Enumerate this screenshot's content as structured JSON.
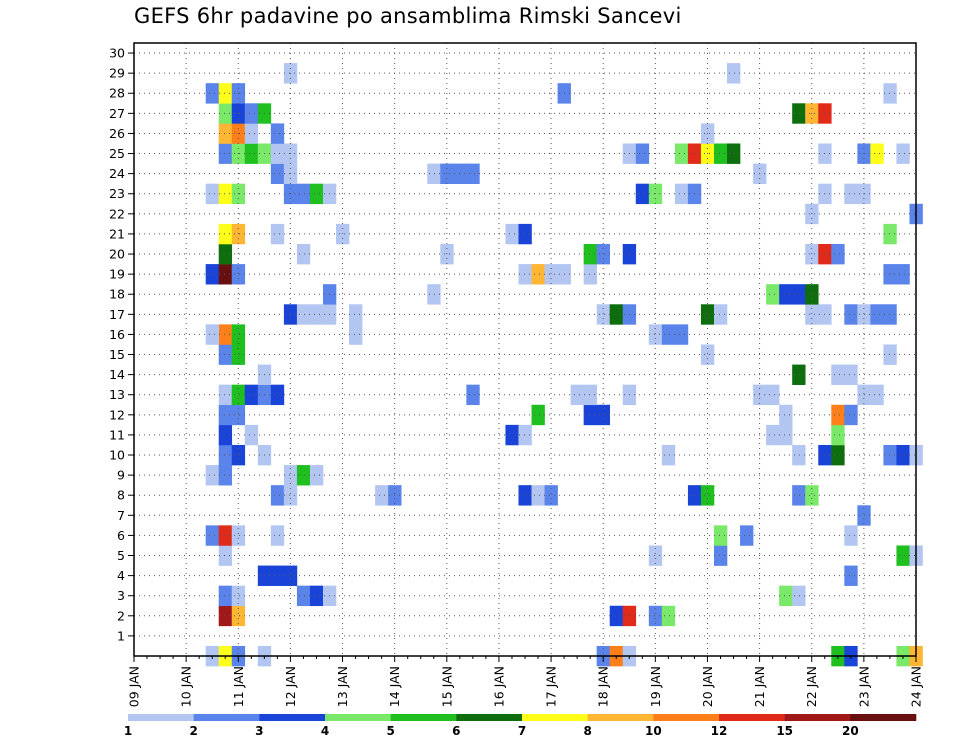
{
  "title": "GEFS 6hr padavine po ansamblima Rimski Sancevi",
  "chart_data": {
    "type": "heatmap",
    "title": "GEFS 6hr padavine po ansamblima Rimski Sancevi",
    "xlabel": "",
    "ylabel": "",
    "x_ticks": [
      "09 JAN",
      "10 JAN",
      "11 JAN",
      "12 JAN",
      "13 JAN",
      "14 JAN",
      "15 JAN",
      "16 JAN",
      "17 JAN",
      "18 JAN",
      "19 JAN",
      "20 JAN",
      "21 JAN",
      "22 JAN",
      "23 JAN",
      "24 JAN"
    ],
    "y_ticks": [
      "1",
      "2",
      "3",
      "4",
      "5",
      "6",
      "7",
      "8",
      "9",
      "10",
      "11",
      "12",
      "13",
      "14",
      "15",
      "16",
      "17",
      "18",
      "19",
      "20",
      "21",
      "22",
      "23",
      "24",
      "25",
      "26",
      "27",
      "28",
      "29",
      "30"
    ],
    "x_unit": "6-hour step (4 per day, 0 = 09 JAN 00z)",
    "xlim": [
      0,
      60
    ],
    "ylim": [
      0,
      30
    ],
    "grid": true,
    "colorbar": {
      "labels": [
        "1",
        "2",
        "3",
        "4",
        "5",
        "6",
        "7",
        "8",
        "10",
        "12",
        "15",
        "20"
      ],
      "colors": [
        "#b3c6f2",
        "#5a84ea",
        "#1a44d8",
        "#7ae868",
        "#1fbf1f",
        "#0e6e0e",
        "#ffff1a",
        "#ffb733",
        "#ff7f1a",
        "#e02a1a",
        "#a01818",
        "#6a0f0f"
      ]
    },
    "cells": [
      {
        "x": 6,
        "y": 0,
        "c": 0
      },
      {
        "x": 7,
        "y": 0,
        "c": 6
      },
      {
        "x": 8,
        "y": 0,
        "c": 1
      },
      {
        "x": 10,
        "y": 0,
        "c": 0
      },
      {
        "x": 36,
        "y": 0,
        "c": 1
      },
      {
        "x": 37,
        "y": 0,
        "c": 8
      },
      {
        "x": 38,
        "y": 0,
        "c": 0
      },
      {
        "x": 54,
        "y": 0,
        "c": 4
      },
      {
        "x": 55,
        "y": 0,
        "c": 2
      },
      {
        "x": 59,
        "y": 0,
        "c": 3
      },
      {
        "x": 60,
        "y": 0,
        "c": 7
      },
      {
        "x": 7,
        "y": 2,
        "c": 10
      },
      {
        "x": 8,
        "y": 2,
        "c": 7
      },
      {
        "x": 37,
        "y": 2,
        "c": 2
      },
      {
        "x": 38,
        "y": 2,
        "c": 9
      },
      {
        "x": 40,
        "y": 2,
        "c": 1
      },
      {
        "x": 41,
        "y": 2,
        "c": 3
      },
      {
        "x": 7,
        "y": 3,
        "c": 1
      },
      {
        "x": 8,
        "y": 3,
        "c": 0
      },
      {
        "x": 13,
        "y": 3,
        "c": 1
      },
      {
        "x": 14,
        "y": 3,
        "c": 2
      },
      {
        "x": 15,
        "y": 3,
        "c": 0
      },
      {
        "x": 50,
        "y": 3,
        "c": 3
      },
      {
        "x": 51,
        "y": 3,
        "c": 0
      },
      {
        "x": 10,
        "y": 4,
        "c": 2
      },
      {
        "x": 11,
        "y": 4,
        "c": 2
      },
      {
        "x": 12,
        "y": 4,
        "c": 2
      },
      {
        "x": 55,
        "y": 4,
        "c": 1
      },
      {
        "x": 7,
        "y": 5,
        "c": 0
      },
      {
        "x": 40,
        "y": 5,
        "c": 0
      },
      {
        "x": 45,
        "y": 5,
        "c": 1
      },
      {
        "x": 59,
        "y": 5,
        "c": 4
      },
      {
        "x": 60,
        "y": 5,
        "c": 0
      },
      {
        "x": 6,
        "y": 6,
        "c": 1
      },
      {
        "x": 7,
        "y": 6,
        "c": 9
      },
      {
        "x": 8,
        "y": 6,
        "c": 0
      },
      {
        "x": 11,
        "y": 6,
        "c": 0
      },
      {
        "x": 45,
        "y": 6,
        "c": 3
      },
      {
        "x": 47,
        "y": 6,
        "c": 1
      },
      {
        "x": 55,
        "y": 6,
        "c": 0
      },
      {
        "x": 56,
        "y": 7,
        "c": 1
      },
      {
        "x": 11,
        "y": 8,
        "c": 1
      },
      {
        "x": 12,
        "y": 8,
        "c": 0
      },
      {
        "x": 19,
        "y": 8,
        "c": 0
      },
      {
        "x": 20,
        "y": 8,
        "c": 1
      },
      {
        "x": 30,
        "y": 8,
        "c": 2
      },
      {
        "x": 31,
        "y": 8,
        "c": 0
      },
      {
        "x": 32,
        "y": 8,
        "c": 1
      },
      {
        "x": 43,
        "y": 8,
        "c": 2
      },
      {
        "x": 44,
        "y": 8,
        "c": 4
      },
      {
        "x": 51,
        "y": 8,
        "c": 1
      },
      {
        "x": 52,
        "y": 8,
        "c": 3
      },
      {
        "x": 6,
        "y": 9,
        "c": 0
      },
      {
        "x": 7,
        "y": 9,
        "c": 1
      },
      {
        "x": 12,
        "y": 9,
        "c": 0
      },
      {
        "x": 13,
        "y": 9,
        "c": 4
      },
      {
        "x": 14,
        "y": 9,
        "c": 0
      },
      {
        "x": 7,
        "y": 10,
        "c": 1
      },
      {
        "x": 8,
        "y": 10,
        "c": 2
      },
      {
        "x": 10,
        "y": 10,
        "c": 0
      },
      {
        "x": 41,
        "y": 10,
        "c": 0
      },
      {
        "x": 51,
        "y": 10,
        "c": 0
      },
      {
        "x": 53,
        "y": 10,
        "c": 2
      },
      {
        "x": 54,
        "y": 10,
        "c": 5
      },
      {
        "x": 58,
        "y": 10,
        "c": 1
      },
      {
        "x": 59,
        "y": 10,
        "c": 2
      },
      {
        "x": 60,
        "y": 10,
        "c": 0
      },
      {
        "x": 7,
        "y": 11,
        "c": 2
      },
      {
        "x": 9,
        "y": 11,
        "c": 0
      },
      {
        "x": 29,
        "y": 11,
        "c": 2
      },
      {
        "x": 30,
        "y": 11,
        "c": 0
      },
      {
        "x": 49,
        "y": 11,
        "c": 0
      },
      {
        "x": 50,
        "y": 11,
        "c": 0
      },
      {
        "x": 54,
        "y": 11,
        "c": 3
      },
      {
        "x": 7,
        "y": 12,
        "c": 1
      },
      {
        "x": 8,
        "y": 12,
        "c": 1
      },
      {
        "x": 31,
        "y": 12,
        "c": 4
      },
      {
        "x": 35,
        "y": 12,
        "c": 2
      },
      {
        "x": 36,
        "y": 12,
        "c": 2
      },
      {
        "x": 50,
        "y": 12,
        "c": 0
      },
      {
        "x": 54,
        "y": 12,
        "c": 8
      },
      {
        "x": 55,
        "y": 12,
        "c": 1
      },
      {
        "x": 7,
        "y": 13,
        "c": 0
      },
      {
        "x": 8,
        "y": 13,
        "c": 4
      },
      {
        "x": 9,
        "y": 13,
        "c": 2
      },
      {
        "x": 10,
        "y": 13,
        "c": 1
      },
      {
        "x": 11,
        "y": 13,
        "c": 2
      },
      {
        "x": 26,
        "y": 13,
        "c": 1
      },
      {
        "x": 34,
        "y": 13,
        "c": 0
      },
      {
        "x": 35,
        "y": 13,
        "c": 0
      },
      {
        "x": 38,
        "y": 13,
        "c": 0
      },
      {
        "x": 48,
        "y": 13,
        "c": 0
      },
      {
        "x": 49,
        "y": 13,
        "c": 0
      },
      {
        "x": 56,
        "y": 13,
        "c": 0
      },
      {
        "x": 57,
        "y": 13,
        "c": 0
      },
      {
        "x": 10,
        "y": 14,
        "c": 0
      },
      {
        "x": 51,
        "y": 14,
        "c": 5
      },
      {
        "x": 54,
        "y": 14,
        "c": 0
      },
      {
        "x": 55,
        "y": 14,
        "c": 0
      },
      {
        "x": 7,
        "y": 15,
        "c": 1
      },
      {
        "x": 8,
        "y": 15,
        "c": 4
      },
      {
        "x": 44,
        "y": 15,
        "c": 0
      },
      {
        "x": 58,
        "y": 15,
        "c": 0
      },
      {
        "x": 7,
        "y": 16,
        "c": 8
      },
      {
        "x": 8,
        "y": 16,
        "c": 4
      },
      {
        "x": 6,
        "y": 16,
        "c": 0
      },
      {
        "x": 17,
        "y": 16,
        "c": 0
      },
      {
        "x": 40,
        "y": 16,
        "c": 0
      },
      {
        "x": 41,
        "y": 16,
        "c": 1
      },
      {
        "x": 42,
        "y": 16,
        "c": 1
      },
      {
        "x": 12,
        "y": 17,
        "c": 2
      },
      {
        "x": 13,
        "y": 17,
        "c": 0
      },
      {
        "x": 14,
        "y": 17,
        "c": 0
      },
      {
        "x": 15,
        "y": 17,
        "c": 0
      },
      {
        "x": 17,
        "y": 17,
        "c": 0
      },
      {
        "x": 36,
        "y": 17,
        "c": 0
      },
      {
        "x": 37,
        "y": 17,
        "c": 5
      },
      {
        "x": 38,
        "y": 17,
        "c": 1
      },
      {
        "x": 44,
        "y": 17,
        "c": 5
      },
      {
        "x": 45,
        "y": 17,
        "c": 0
      },
      {
        "x": 52,
        "y": 17,
        "c": 0
      },
      {
        "x": 53,
        "y": 17,
        "c": 0
      },
      {
        "x": 55,
        "y": 17,
        "c": 1
      },
      {
        "x": 56,
        "y": 17,
        "c": 0
      },
      {
        "x": 57,
        "y": 17,
        "c": 1
      },
      {
        "x": 58,
        "y": 17,
        "c": 1
      },
      {
        "x": 15,
        "y": 18,
        "c": 1
      },
      {
        "x": 23,
        "y": 18,
        "c": 0
      },
      {
        "x": 49,
        "y": 18,
        "c": 3
      },
      {
        "x": 50,
        "y": 18,
        "c": 2
      },
      {
        "x": 51,
        "y": 18,
        "c": 2
      },
      {
        "x": 52,
        "y": 18,
        "c": 5
      },
      {
        "x": 6,
        "y": 19,
        "c": 2
      },
      {
        "x": 7,
        "y": 19,
        "c": 11
      },
      {
        "x": 8,
        "y": 19,
        "c": 1
      },
      {
        "x": 30,
        "y": 19,
        "c": 0
      },
      {
        "x": 31,
        "y": 19,
        "c": 7
      },
      {
        "x": 32,
        "y": 19,
        "c": 0
      },
      {
        "x": 33,
        "y": 19,
        "c": 0
      },
      {
        "x": 35,
        "y": 19,
        "c": 0
      },
      {
        "x": 58,
        "y": 19,
        "c": 1
      },
      {
        "x": 59,
        "y": 19,
        "c": 1
      },
      {
        "x": 7,
        "y": 20,
        "c": 5
      },
      {
        "x": 13,
        "y": 20,
        "c": 0
      },
      {
        "x": 24,
        "y": 20,
        "c": 0
      },
      {
        "x": 35,
        "y": 20,
        "c": 4
      },
      {
        "x": 36,
        "y": 20,
        "c": 1
      },
      {
        "x": 38,
        "y": 20,
        "c": 2
      },
      {
        "x": 52,
        "y": 20,
        "c": 0
      },
      {
        "x": 53,
        "y": 20,
        "c": 9
      },
      {
        "x": 54,
        "y": 20,
        "c": 1
      },
      {
        "x": 7,
        "y": 21,
        "c": 6
      },
      {
        "x": 8,
        "y": 21,
        "c": 7
      },
      {
        "x": 11,
        "y": 21,
        "c": 0
      },
      {
        "x": 16,
        "y": 21,
        "c": 0
      },
      {
        "x": 29,
        "y": 21,
        "c": 0
      },
      {
        "x": 30,
        "y": 21,
        "c": 2
      },
      {
        "x": 58,
        "y": 21,
        "c": 3
      },
      {
        "x": 52,
        "y": 22,
        "c": 0
      },
      {
        "x": 60,
        "y": 22,
        "c": 1
      },
      {
        "x": 6,
        "y": 23,
        "c": 0
      },
      {
        "x": 7,
        "y": 23,
        "c": 6
      },
      {
        "x": 8,
        "y": 23,
        "c": 3
      },
      {
        "x": 12,
        "y": 23,
        "c": 1
      },
      {
        "x": 13,
        "y": 23,
        "c": 1
      },
      {
        "x": 14,
        "y": 23,
        "c": 4
      },
      {
        "x": 15,
        "y": 23,
        "c": 0
      },
      {
        "x": 39,
        "y": 23,
        "c": 2
      },
      {
        "x": 40,
        "y": 23,
        "c": 3
      },
      {
        "x": 42,
        "y": 23,
        "c": 0
      },
      {
        "x": 43,
        "y": 23,
        "c": 1
      },
      {
        "x": 53,
        "y": 23,
        "c": 0
      },
      {
        "x": 55,
        "y": 23,
        "c": 0
      },
      {
        "x": 56,
        "y": 23,
        "c": 0
      },
      {
        "x": 11,
        "y": 24,
        "c": 1
      },
      {
        "x": 12,
        "y": 24,
        "c": 0
      },
      {
        "x": 23,
        "y": 24,
        "c": 0
      },
      {
        "x": 24,
        "y": 24,
        "c": 1
      },
      {
        "x": 25,
        "y": 24,
        "c": 1
      },
      {
        "x": 26,
        "y": 24,
        "c": 1
      },
      {
        "x": 48,
        "y": 24,
        "c": 0
      },
      {
        "x": 7,
        "y": 25,
        "c": 1
      },
      {
        "x": 8,
        "y": 25,
        "c": 3
      },
      {
        "x": 9,
        "y": 25,
        "c": 4
      },
      {
        "x": 10,
        "y": 25,
        "c": 3
      },
      {
        "x": 11,
        "y": 25,
        "c": 0
      },
      {
        "x": 12,
        "y": 25,
        "c": 0
      },
      {
        "x": 38,
        "y": 25,
        "c": 0
      },
      {
        "x": 39,
        "y": 25,
        "c": 1
      },
      {
        "x": 42,
        "y": 25,
        "c": 3
      },
      {
        "x": 43,
        "y": 25,
        "c": 9
      },
      {
        "x": 44,
        "y": 25,
        "c": 6
      },
      {
        "x": 45,
        "y": 25,
        "c": 4
      },
      {
        "x": 46,
        "y": 25,
        "c": 5
      },
      {
        "x": 53,
        "y": 25,
        "c": 0
      },
      {
        "x": 56,
        "y": 25,
        "c": 1
      },
      {
        "x": 57,
        "y": 25,
        "c": 6
      },
      {
        "x": 59,
        "y": 25,
        "c": 0
      },
      {
        "x": 7,
        "y": 26,
        "c": 7
      },
      {
        "x": 8,
        "y": 26,
        "c": 8
      },
      {
        "x": 9,
        "y": 26,
        "c": 0
      },
      {
        "x": 11,
        "y": 26,
        "c": 1
      },
      {
        "x": 44,
        "y": 26,
        "c": 0
      },
      {
        "x": 7,
        "y": 27,
        "c": 3
      },
      {
        "x": 8,
        "y": 27,
        "c": 2
      },
      {
        "x": 9,
        "y": 27,
        "c": 1
      },
      {
        "x": 10,
        "y": 27,
        "c": 4
      },
      {
        "x": 51,
        "y": 27,
        "c": 5
      },
      {
        "x": 52,
        "y": 27,
        "c": 7
      },
      {
        "x": 53,
        "y": 27,
        "c": 9
      },
      {
        "x": 6,
        "y": 28,
        "c": 1
      },
      {
        "x": 7,
        "y": 28,
        "c": 6
      },
      {
        "x": 8,
        "y": 28,
        "c": 1
      },
      {
        "x": 33,
        "y": 28,
        "c": 1
      },
      {
        "x": 58,
        "y": 28,
        "c": 0
      },
      {
        "x": 12,
        "y": 29,
        "c": 0
      },
      {
        "x": 46,
        "y": 29,
        "c": 0
      }
    ]
  }
}
